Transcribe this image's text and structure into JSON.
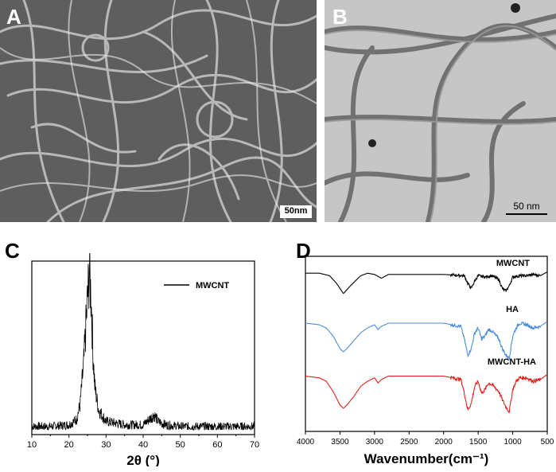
{
  "panels": {
    "A": {
      "letter": "A",
      "scale_bar": "50nm"
    },
    "B": {
      "letter": "B",
      "scale_bar": "50 nm"
    },
    "C": {
      "letter": "C"
    },
    "D": {
      "letter": "D"
    }
  },
  "colors": {
    "black": "#000000",
    "blue": "#4a8fd6",
    "red": "#e0221e",
    "sem_bg": "#5a5a5a",
    "tem_bg": "#c4c4c4"
  },
  "chart_data": [
    {
      "type": "line",
      "panel": "C",
      "xlabel": "2θ (°)",
      "ylabel": "",
      "xlim": [
        10,
        70
      ],
      "x_ticks": [
        "10",
        "20",
        "30",
        "40",
        "50",
        "60",
        "70"
      ],
      "series": [
        {
          "name": "MWCNT",
          "x": [
            10,
            15,
            20,
            22,
            23,
            24,
            25,
            25.5,
            26,
            26.5,
            27,
            28,
            30,
            35,
            40,
            42,
            43,
            44,
            46,
            50,
            60,
            70
          ],
          "y": [
            2,
            2,
            3,
            6,
            15,
            40,
            78,
            95,
            78,
            45,
            25,
            12,
            5,
            3,
            3,
            7,
            9,
            5,
            3,
            2,
            2,
            2
          ]
        }
      ],
      "legend": "top-right"
    },
    {
      "type": "line",
      "panel": "D",
      "xlabel": "Wavenumber(cm⁻¹)",
      "ylabel": "",
      "xlim": [
        4000,
        500
      ],
      "x_ticks": [
        "4000",
        "3500",
        "3000",
        "2500",
        "2000",
        "1500",
        "1000",
        "500"
      ],
      "series": [
        {
          "name": "MWCNT",
          "color": "black",
          "x": [
            4000,
            3800,
            3650,
            3550,
            3450,
            3350,
            3200,
            3100,
            3000,
            2900,
            2800,
            2000,
            1700,
            1650,
            1600,
            1550,
            1500,
            1400,
            1300,
            1200,
            1150,
            1100,
            1050,
            1000,
            900,
            800,
            700,
            600,
            500
          ],
          "y": [
            98,
            98,
            96,
            90,
            82,
            88,
            96,
            98,
            97,
            94,
            97,
            97,
            96,
            90,
            86,
            92,
            96,
            95,
            96,
            93,
            86,
            84,
            88,
            95,
            96,
            96,
            97,
            96,
            99
          ]
        },
        {
          "name": "HA",
          "color": "blue",
          "x": [
            4000,
            3800,
            3700,
            3600,
            3500,
            3450,
            3400,
            3300,
            3200,
            3100,
            3000,
            2950,
            2900,
            2800,
            2000,
            1750,
            1700,
            1650,
            1600,
            1550,
            1500,
            1450,
            1400,
            1350,
            1300,
            1200,
            1150,
            1100,
            1050,
            1000,
            950,
            900,
            800,
            700,
            600,
            500
          ],
          "y": [
            96,
            95,
            93,
            88,
            80,
            78,
            80,
            85,
            90,
            93,
            95,
            92,
            94,
            96,
            96,
            94,
            86,
            76,
            80,
            90,
            93,
            86,
            88,
            92,
            91,
            86,
            80,
            76,
            74,
            88,
            93,
            96,
            95,
            93,
            94,
            97
          ]
        },
        {
          "name": "MWCNT-HA",
          "color": "red",
          "x": [
            4000,
            3800,
            3700,
            3600,
            3500,
            3450,
            3400,
            3300,
            3200,
            3100,
            3000,
            2950,
            2900,
            2800,
            2000,
            1750,
            1700,
            1650,
            1600,
            1550,
            1500,
            1450,
            1400,
            1350,
            1300,
            1200,
            1150,
            1100,
            1050,
            1000,
            950,
            900,
            800,
            700,
            600,
            500
          ],
          "y": [
            96,
            95,
            93,
            87,
            79,
            77,
            79,
            84,
            90,
            93,
            95,
            92,
            94,
            96,
            96,
            94,
            86,
            76,
            80,
            90,
            93,
            86,
            88,
            92,
            91,
            87,
            82,
            78,
            75,
            88,
            93,
            95,
            95,
            93,
            94,
            97
          ]
        }
      ]
    }
  ]
}
